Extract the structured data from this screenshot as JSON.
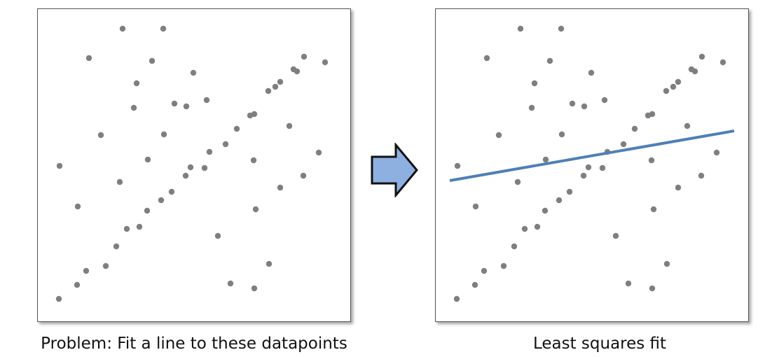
{
  "captions": {
    "problem": "Problem: Fit a line to these datapoints",
    "result": "Least squares fit"
  },
  "colors": {
    "point": "#7f7f7f",
    "fit_line": "#4f7fb5",
    "arrow_fill": "#8db0e0",
    "arrow_stroke": "#111111",
    "panel_border": "#555555"
  },
  "icons": {
    "arrow": "right-arrow-icon"
  },
  "chart_data": [
    {
      "type": "scatter",
      "title": "",
      "xlabel": "",
      "ylabel": "",
      "xlim": [
        0,
        448
      ],
      "ylim": [
        0,
        448
      ],
      "grid": false,
      "points": [
        [
          30,
          34
        ],
        [
          56,
          54
        ],
        [
          69,
          74
        ],
        [
          97,
          81
        ],
        [
          112,
          109
        ],
        [
          127,
          134
        ],
        [
          145,
          137
        ],
        [
          156,
          160
        ],
        [
          176,
          175
        ],
        [
          191,
          187
        ],
        [
          211,
          210
        ],
        [
          218,
          222
        ],
        [
          238,
          221
        ],
        [
          245,
          244
        ],
        [
          268,
          255
        ],
        [
          284,
          277
        ],
        [
          303,
          296
        ],
        [
          309,
          298
        ],
        [
          329,
          331
        ],
        [
          339,
          337
        ],
        [
          346,
          344
        ],
        [
          370,
          359
        ],
        [
          365,
          362
        ],
        [
          380,
          380
        ],
        [
          31,
          224
        ],
        [
          57,
          166
        ],
        [
          73,
          378
        ],
        [
          90,
          268
        ],
        [
          117,
          201
        ],
        [
          121,
          420
        ],
        [
          137,
          307
        ],
        [
          141,
          342
        ],
        [
          157,
          233
        ],
        [
          163,
          374
        ],
        [
          179,
          420
        ],
        [
          180,
          269
        ],
        [
          195,
          313
        ],
        [
          212,
          309
        ],
        [
          222,
          357
        ],
        [
          241,
          318
        ],
        [
          257,
          124
        ],
        [
          275,
          56
        ],
        [
          309,
          49
        ],
        [
          311,
          162
        ],
        [
          308,
          232
        ],
        [
          330,
          84
        ],
        [
          346,
          193
        ],
        [
          359,
          281
        ],
        [
          379,
          210
        ],
        [
          401,
          243
        ],
        [
          410,
          372
        ]
      ]
    },
    {
      "type": "scatter",
      "title": "",
      "xlabel": "",
      "ylabel": "",
      "xlim": [
        0,
        448
      ],
      "ylim": [
        0,
        448
      ],
      "grid": false,
      "points": [
        [
          30,
          34
        ],
        [
          56,
          54
        ],
        [
          69,
          74
        ],
        [
          97,
          81
        ],
        [
          112,
          109
        ],
        [
          127,
          134
        ],
        [
          145,
          137
        ],
        [
          156,
          160
        ],
        [
          176,
          175
        ],
        [
          191,
          187
        ],
        [
          211,
          210
        ],
        [
          218,
          222
        ],
        [
          238,
          221
        ],
        [
          245,
          244
        ],
        [
          268,
          255
        ],
        [
          284,
          277
        ],
        [
          303,
          296
        ],
        [
          309,
          298
        ],
        [
          329,
          331
        ],
        [
          339,
          337
        ],
        [
          346,
          344
        ],
        [
          370,
          359
        ],
        [
          365,
          362
        ],
        [
          380,
          380
        ],
        [
          31,
          224
        ],
        [
          57,
          166
        ],
        [
          73,
          378
        ],
        [
          90,
          268
        ],
        [
          117,
          201
        ],
        [
          121,
          420
        ],
        [
          137,
          307
        ],
        [
          141,
          342
        ],
        [
          157,
          233
        ],
        [
          163,
          374
        ],
        [
          179,
          420
        ],
        [
          180,
          269
        ],
        [
          195,
          313
        ],
        [
          212,
          309
        ],
        [
          222,
          357
        ],
        [
          241,
          318
        ],
        [
          257,
          124
        ],
        [
          275,
          56
        ],
        [
          309,
          49
        ],
        [
          311,
          162
        ],
        [
          308,
          232
        ],
        [
          330,
          84
        ],
        [
          346,
          193
        ],
        [
          359,
          281
        ],
        [
          379,
          210
        ],
        [
          401,
          243
        ],
        [
          410,
          372
        ]
      ],
      "fit_line": {
        "x": [
          20,
          426
        ],
        "y": [
          203,
          274
        ]
      }
    }
  ]
}
